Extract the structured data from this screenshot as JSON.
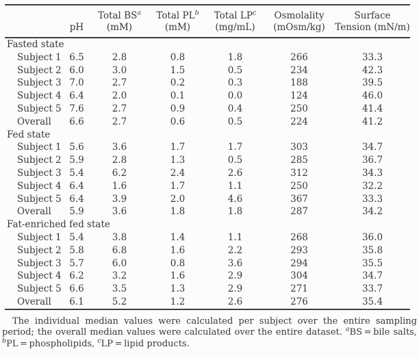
{
  "page": {
    "background_color": "#fcfcfa",
    "text_color": "#383838",
    "rule_color": "#3e3e3e"
  },
  "table": {
    "header": {
      "col_ph": "pH",
      "col_bs_top": "Total BS",
      "col_bs_sup": "a",
      "col_bs_bottom": "(mM)",
      "col_pl_top": "Total PL",
      "col_pl_sup": "b",
      "col_pl_bottom": "(mM)",
      "col_lp_top": "Total LP",
      "col_lp_sup": "c",
      "col_lp_bottom": "(mg/mL)",
      "col_osm_top": "Osmolality",
      "col_osm_bottom": "(mOsm/kg)",
      "col_st_top": "Surface",
      "col_st_bottom": "Tension (mN/m)"
    },
    "groups": [
      {
        "label": "Fasted state",
        "rows": [
          {
            "label": "Subject 1",
            "values": [
              "6.5",
              "2.8",
              "0.8",
              "1.8",
              "266",
              "33.3"
            ]
          },
          {
            "label": "Subject 2",
            "values": [
              "6.0",
              "3.0",
              "1.5",
              "0.5",
              "234",
              "42.3"
            ]
          },
          {
            "label": "Subject 3",
            "values": [
              "7.0",
              "2.7",
              "0.2",
              "0.3",
              "188",
              "39.5"
            ]
          },
          {
            "label": "Subject 4",
            "values": [
              "6.4",
              "2.0",
              "0.1",
              "0.0",
              "124",
              "46.0"
            ]
          },
          {
            "label": "Subject 5",
            "values": [
              "7.6",
              "2.7",
              "0.9",
              "0.4",
              "250",
              "41.4"
            ]
          },
          {
            "label": "Overall",
            "values": [
              "6.6",
              "2.7",
              "0.6",
              "0.5",
              "224",
              "41.2"
            ]
          }
        ]
      },
      {
        "label": "Fed state",
        "rows": [
          {
            "label": "Subject 1",
            "values": [
              "5.6",
              "3.6",
              "1.7",
              "1.7",
              "303",
              "34.7"
            ]
          },
          {
            "label": "Subject 2",
            "values": [
              "5.9",
              "2.8",
              "1.3",
              "0.5",
              "285",
              "36.7"
            ]
          },
          {
            "label": "Subject 3",
            "values": [
              "5.4",
              "6.2",
              "2.4",
              "2.6",
              "312",
              "34.3"
            ]
          },
          {
            "label": "Subject 4",
            "values": [
              "6.4",
              "1.6",
              "1.7",
              "1.1",
              "250",
              "32.2"
            ]
          },
          {
            "label": "Subject 5",
            "values": [
              "6.4",
              "3.9",
              "2.0",
              "4.6",
              "367",
              "33.3"
            ]
          },
          {
            "label": "Overall",
            "values": [
              "5.9",
              "3.6",
              "1.8",
              "1.8",
              "287",
              "34.2"
            ]
          }
        ]
      },
      {
        "label": "Fat-enriched fed state",
        "rows": [
          {
            "label": "Subject 1",
            "values": [
              "5.4",
              "3.8",
              "1.4",
              "1.1",
              "268",
              "36.0"
            ]
          },
          {
            "label": "Subject 2",
            "values": [
              "5.8",
              "6.8",
              "1.6",
              "2.2",
              "293",
              "35.8"
            ]
          },
          {
            "label": "Subject 3",
            "values": [
              "5.7",
              "6.0",
              "0.8",
              "3.6",
              "294",
              "35.5"
            ]
          },
          {
            "label": "Subject 4",
            "values": [
              "6.2",
              "3.2",
              "1.6",
              "2.9",
              "304",
              "34.7"
            ]
          },
          {
            "label": "Subject 5",
            "values": [
              "6.6",
              "3.5",
              "1.3",
              "2.9",
              "271",
              "33.7"
            ]
          },
          {
            "label": "Overall",
            "values": [
              "6.1",
              "5.2",
              "1.2",
              "2.6",
              "276",
              "35.4"
            ]
          }
        ]
      }
    ]
  },
  "footnote": {
    "body": "The individual median values were calculated per subject over the entire sampling period; the overall median values were calculated over the entire dataset. ",
    "def_a_sup": "a",
    "def_a_text": "BS = bile salts, ",
    "def_b_sup": "b",
    "def_b_text": "PL = phospholipids, ",
    "def_c_sup": "c",
    "def_c_text": "LP = lipid products."
  }
}
